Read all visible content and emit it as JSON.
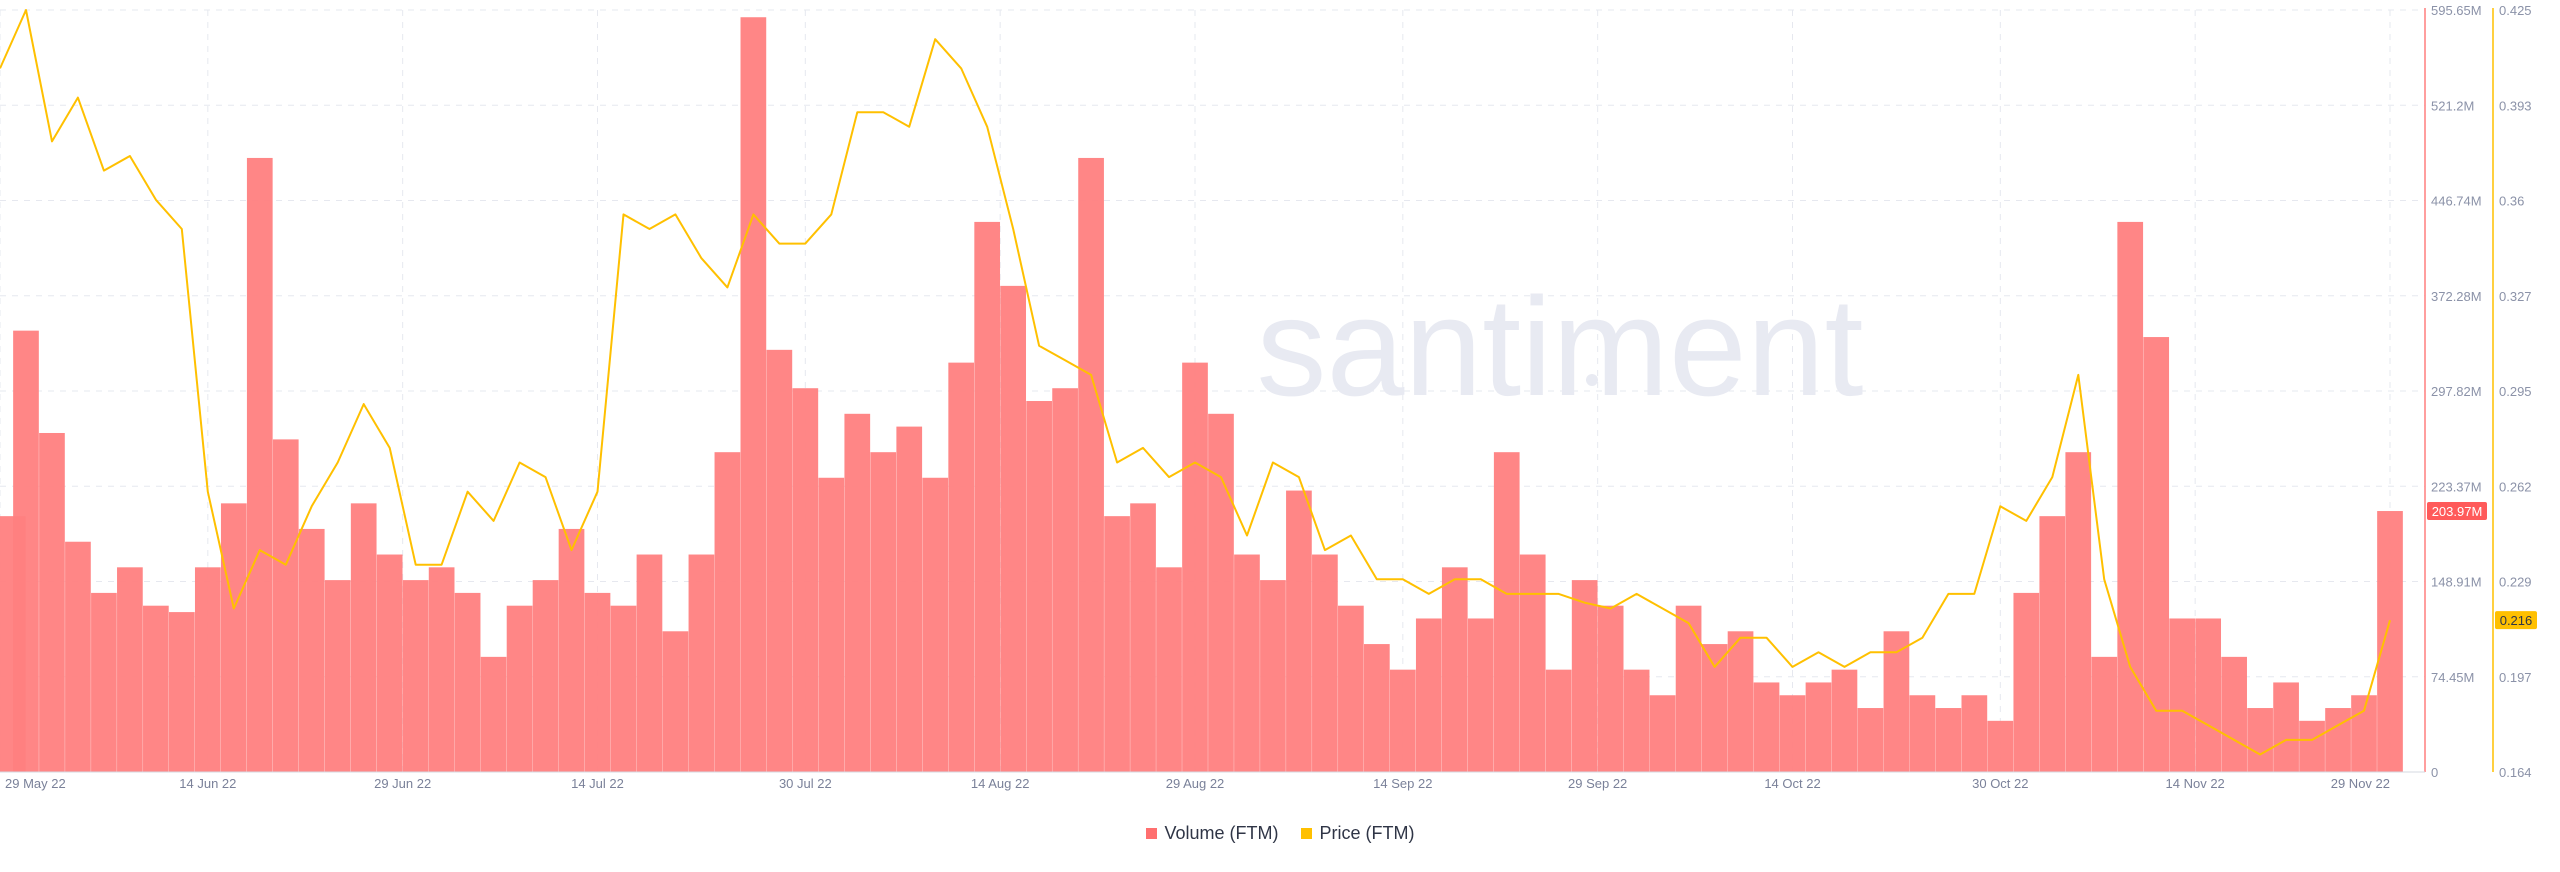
{
  "chart_data": {
    "type": "bar",
    "watermark": "santiment",
    "x_ticks": [
      "29 May 22",
      "14 Jun 22",
      "29 Jun 22",
      "14 Jul 22",
      "30 Jul 22",
      "14 Aug 22",
      "29 Aug 22",
      "14 Sep 22",
      "29 Sep 22",
      "14 Oct 22",
      "30 Oct 22",
      "14 Nov 22",
      "29 Nov 22"
    ],
    "x_range": [
      "2022-05-29",
      "2022-11-29"
    ],
    "volume_axis": {
      "ticks": [
        "595.65M",
        "521.2M",
        "446.74M",
        "372.28M",
        "297.82M",
        "223.37M",
        "148.91M",
        "74.45M",
        "0"
      ],
      "ylim": [
        0,
        595.65
      ],
      "unit": "M"
    },
    "price_axis": {
      "ticks": [
        "0.425",
        "0.393",
        "0.36",
        "0.327",
        "0.295",
        "0.262",
        "0.229",
        "0.197",
        "0.164"
      ],
      "ylim": [
        0.164,
        0.425
      ]
    },
    "last_labels": {
      "volume": "203.97M",
      "price": "0.216"
    },
    "grid": true,
    "legend_position": "bottom-center",
    "series": [
      {
        "name": "Volume (FTM)",
        "kind": "bar",
        "axis": "volume",
        "color": "#ff7f7f",
        "x": [
          "2022-05-29",
          "2022-05-31",
          "2022-06-02",
          "2022-06-04",
          "2022-06-06",
          "2022-06-08",
          "2022-06-10",
          "2022-06-12",
          "2022-06-14",
          "2022-06-16",
          "2022-06-18",
          "2022-06-20",
          "2022-06-22",
          "2022-06-24",
          "2022-06-26",
          "2022-06-28",
          "2022-06-30",
          "2022-07-02",
          "2022-07-04",
          "2022-07-06",
          "2022-07-08",
          "2022-07-10",
          "2022-07-12",
          "2022-07-14",
          "2022-07-16",
          "2022-07-18",
          "2022-07-20",
          "2022-07-22",
          "2022-07-24",
          "2022-07-26",
          "2022-07-28",
          "2022-07-30",
          "2022-08-01",
          "2022-08-03",
          "2022-08-05",
          "2022-08-07",
          "2022-08-09",
          "2022-08-11",
          "2022-08-13",
          "2022-08-15",
          "2022-08-17",
          "2022-08-19",
          "2022-08-21",
          "2022-08-23",
          "2022-08-25",
          "2022-08-27",
          "2022-08-29",
          "2022-08-31",
          "2022-09-02",
          "2022-09-04",
          "2022-09-06",
          "2022-09-08",
          "2022-09-10",
          "2022-09-12",
          "2022-09-14",
          "2022-09-16",
          "2022-09-18",
          "2022-09-20",
          "2022-09-22",
          "2022-09-24",
          "2022-09-26",
          "2022-09-28",
          "2022-09-30",
          "2022-10-02",
          "2022-10-04",
          "2022-10-06",
          "2022-10-08",
          "2022-10-10",
          "2022-10-12",
          "2022-10-14",
          "2022-10-16",
          "2022-10-18",
          "2022-10-20",
          "2022-10-22",
          "2022-10-24",
          "2022-10-26",
          "2022-10-28",
          "2022-10-30",
          "2022-11-01",
          "2022-11-03",
          "2022-11-05",
          "2022-11-07",
          "2022-11-09",
          "2022-11-11",
          "2022-11-13",
          "2022-11-15",
          "2022-11-17",
          "2022-11-19",
          "2022-11-21",
          "2022-11-23",
          "2022-11-25",
          "2022-11-27",
          "2022-11-29"
        ],
        "values": [
          200,
          345,
          265,
          180,
          140,
          160,
          130,
          125,
          160,
          210,
          480,
          260,
          190,
          150,
          210,
          170,
          150,
          160,
          140,
          90,
          130,
          150,
          190,
          140,
          130,
          170,
          110,
          170,
          250,
          590,
          330,
          300,
          230,
          280,
          250,
          270,
          230,
          320,
          430,
          380,
          290,
          300,
          480,
          200,
          210,
          160,
          320,
          280,
          170,
          150,
          220,
          170,
          130,
          100,
          80,
          120,
          160,
          120,
          250,
          170,
          80,
          150,
          130,
          80,
          60,
          130,
          100,
          110,
          70,
          60,
          70,
          80,
          50,
          110,
          60,
          50,
          60,
          40,
          140,
          200,
          250,
          90,
          430,
          340,
          120,
          120,
          90,
          50,
          70,
          40,
          50,
          60,
          204
        ]
      },
      {
        "name": "Price (FTM)",
        "kind": "line",
        "axis": "price",
        "color": "#ffc000",
        "x": [
          "2022-05-29",
          "2022-05-31",
          "2022-06-02",
          "2022-06-04",
          "2022-06-06",
          "2022-06-08",
          "2022-06-10",
          "2022-06-12",
          "2022-06-14",
          "2022-06-16",
          "2022-06-18",
          "2022-06-20",
          "2022-06-22",
          "2022-06-24",
          "2022-06-26",
          "2022-06-28",
          "2022-06-30",
          "2022-07-02",
          "2022-07-04",
          "2022-07-06",
          "2022-07-08",
          "2022-07-10",
          "2022-07-12",
          "2022-07-14",
          "2022-07-16",
          "2022-07-18",
          "2022-07-20",
          "2022-07-22",
          "2022-07-24",
          "2022-07-26",
          "2022-07-28",
          "2022-07-30",
          "2022-08-01",
          "2022-08-03",
          "2022-08-05",
          "2022-08-07",
          "2022-08-09",
          "2022-08-11",
          "2022-08-13",
          "2022-08-15",
          "2022-08-17",
          "2022-08-19",
          "2022-08-21",
          "2022-08-23",
          "2022-08-25",
          "2022-08-27",
          "2022-08-29",
          "2022-08-31",
          "2022-09-02",
          "2022-09-04",
          "2022-09-06",
          "2022-09-08",
          "2022-09-10",
          "2022-09-12",
          "2022-09-14",
          "2022-09-16",
          "2022-09-18",
          "2022-09-20",
          "2022-09-22",
          "2022-09-24",
          "2022-09-26",
          "2022-09-28",
          "2022-09-30",
          "2022-10-02",
          "2022-10-04",
          "2022-10-06",
          "2022-10-08",
          "2022-10-10",
          "2022-10-12",
          "2022-10-14",
          "2022-10-16",
          "2022-10-18",
          "2022-10-20",
          "2022-10-22",
          "2022-10-24",
          "2022-10-26",
          "2022-10-28",
          "2022-10-30",
          "2022-11-01",
          "2022-11-03",
          "2022-11-05",
          "2022-11-07",
          "2022-11-09",
          "2022-11-11",
          "2022-11-13",
          "2022-11-15",
          "2022-11-17",
          "2022-11-19",
          "2022-11-21",
          "2022-11-23",
          "2022-11-25",
          "2022-11-27",
          "2022-11-29"
        ],
        "values": [
          0.405,
          0.425,
          0.38,
          0.395,
          0.37,
          0.375,
          0.36,
          0.35,
          0.26,
          0.22,
          0.24,
          0.235,
          0.255,
          0.27,
          0.29,
          0.275,
          0.235,
          0.235,
          0.26,
          0.25,
          0.27,
          0.265,
          0.24,
          0.26,
          0.355,
          0.35,
          0.355,
          0.34,
          0.33,
          0.355,
          0.345,
          0.345,
          0.355,
          0.39,
          0.39,
          0.385,
          0.415,
          0.405,
          0.385,
          0.35,
          0.31,
          0.305,
          0.3,
          0.27,
          0.275,
          0.265,
          0.27,
          0.265,
          0.245,
          0.27,
          0.265,
          0.24,
          0.245,
          0.23,
          0.23,
          0.225,
          0.23,
          0.23,
          0.225,
          0.225,
          0.225,
          0.222,
          0.22,
          0.225,
          0.22,
          0.215,
          0.2,
          0.21,
          0.21,
          0.2,
          0.205,
          0.2,
          0.205,
          0.205,
          0.21,
          0.225,
          0.225,
          0.255,
          0.25,
          0.265,
          0.3,
          0.23,
          0.2,
          0.185,
          0.185,
          0.18,
          0.175,
          0.17,
          0.175,
          0.175,
          0.18,
          0.185,
          0.216
        ]
      }
    ]
  }
}
